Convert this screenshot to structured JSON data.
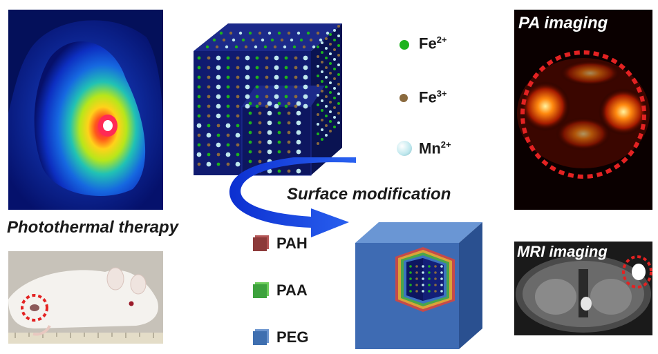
{
  "labels": {
    "photothermal": "Photothermal therapy",
    "surface_mod": "Surface modification",
    "pa_imaging": "PA imaging",
    "mri_imaging": "MRI imaging"
  },
  "ions": [
    {
      "symbol": "Fe",
      "charge": "2+",
      "color": "#1db31d"
    },
    {
      "symbol": "Fe",
      "charge": "3+",
      "color": "#8a6a3e"
    },
    {
      "symbol": "Mn",
      "charge": "2+",
      "color": "#bfe8ee"
    }
  ],
  "coatings": [
    {
      "name": "PAH",
      "color": "#8c3a3a"
    },
    {
      "name": "PAA",
      "color": "#3da23d"
    },
    {
      "name": "PEG",
      "color": "#3f6fb0"
    }
  ],
  "colors": {
    "cube_face": "#101b70",
    "shell": "#3e6bb3",
    "arrow": "#1f4fe6",
    "dash_circle": "#e32222"
  }
}
